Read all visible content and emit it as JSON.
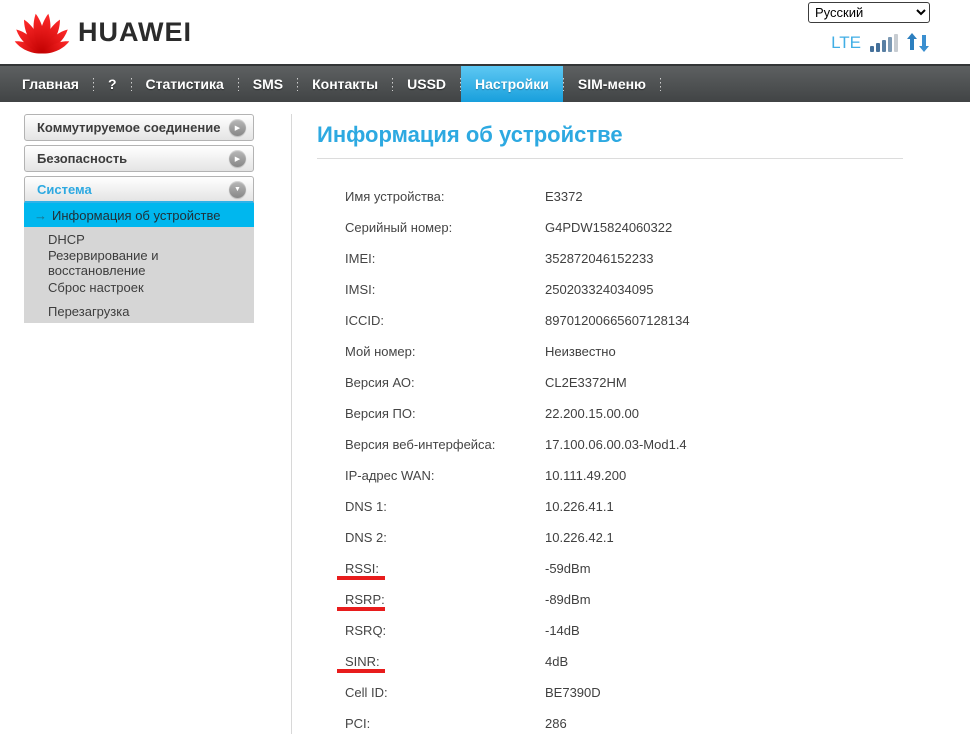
{
  "header": {
    "brand": "HUAWEI",
    "language": {
      "selected": "Русский",
      "options": [
        "Русский"
      ]
    },
    "network_type": "LTE"
  },
  "nav": {
    "items": [
      {
        "id": "home",
        "label": "Главная",
        "active": false
      },
      {
        "id": "help",
        "label": "?",
        "active": false
      },
      {
        "id": "statistics",
        "label": "Статистика",
        "active": false
      },
      {
        "id": "sms",
        "label": "SMS",
        "active": false
      },
      {
        "id": "contacts",
        "label": "Контакты",
        "active": false
      },
      {
        "id": "ussd",
        "label": "USSD",
        "active": false
      },
      {
        "id": "settings",
        "label": "Настройки",
        "active": true
      },
      {
        "id": "sim-menu",
        "label": "SIM-меню",
        "active": false
      }
    ]
  },
  "sidebar": {
    "sections": [
      {
        "id": "dialup",
        "label": "Коммутируемое соединение",
        "expanded": false,
        "items": []
      },
      {
        "id": "security",
        "label": "Безопасность",
        "expanded": false,
        "items": []
      },
      {
        "id": "system",
        "label": "Система",
        "expanded": true,
        "items": [
          {
            "id": "device-info",
            "label": "Информация об устройстве",
            "selected": true
          },
          {
            "id": "dhcp",
            "label": "DHCP",
            "selected": false
          },
          {
            "id": "backup-restore",
            "label": "Резервирование и восстановление",
            "selected": false
          },
          {
            "id": "reset",
            "label": "Сброс настроек",
            "selected": false
          },
          {
            "id": "reboot",
            "label": "Перезагрузка",
            "selected": false
          }
        ]
      }
    ]
  },
  "main": {
    "title": "Информация об устройстве",
    "rows": [
      {
        "id": "device-name",
        "label": "Имя устройства:",
        "value": "E3372",
        "underlined": false
      },
      {
        "id": "serial-number",
        "label": "Серийный номер:",
        "value": "G4PDW15824060322",
        "underlined": false
      },
      {
        "id": "imei",
        "label": "IMEI:",
        "value": "352872046152233",
        "underlined": false
      },
      {
        "id": "imsi",
        "label": "IMSI:",
        "value": "250203324034095",
        "underlined": false
      },
      {
        "id": "iccid",
        "label": "ICCID:",
        "value": "89701200665607128134",
        "underlined": false
      },
      {
        "id": "my-number",
        "label": "Мой номер:",
        "value": "Неизвестно",
        "underlined": false
      },
      {
        "id": "hw-version",
        "label": "Версия АО:",
        "value": "CL2E3372HM",
        "underlined": false
      },
      {
        "id": "sw-version",
        "label": "Версия ПО:",
        "value": "22.200.15.00.00",
        "underlined": false
      },
      {
        "id": "webui-version",
        "label": "Версия веб-интерфейса:",
        "value": "17.100.06.00.03-Mod1.4",
        "underlined": false
      },
      {
        "id": "wan-ip",
        "label": "IP-адрес WAN:",
        "value": "10.111.49.200",
        "underlined": false
      },
      {
        "id": "dns1",
        "label": "DNS 1:",
        "value": "10.226.41.1",
        "underlined": false
      },
      {
        "id": "dns2",
        "label": "DNS 2:",
        "value": "10.226.42.1",
        "underlined": false
      },
      {
        "id": "rssi",
        "label": "RSSI:",
        "value": "-59dBm",
        "underlined": true
      },
      {
        "id": "rsrp",
        "label": "RSRP:",
        "value": "-89dBm",
        "underlined": true
      },
      {
        "id": "rsrq",
        "label": "RSRQ:",
        "value": "-14dB",
        "underlined": false
      },
      {
        "id": "sinr",
        "label": "SINR:",
        "value": "4dB",
        "underlined": true
      },
      {
        "id": "cell-id",
        "label": "Cell ID:",
        "value": "BE7390D",
        "underlined": false
      },
      {
        "id": "pci",
        "label": "PCI:",
        "value": "286",
        "underlined": false
      }
    ]
  },
  "icons": {
    "collapsed_section_glyph": "▶",
    "expanded_section_glyph": "▼",
    "selected_item_arrow": "→"
  },
  "colors": {
    "accent_blue": "#2da9e1",
    "active_tab_top": "#5ec8f3",
    "active_tab_bottom": "#189fdc",
    "selected_item_bg": "#00b7ee",
    "navbar_bg": "#4b4e4f",
    "submenu_bg": "#d6d6d6",
    "underline_red": "#e81c1c",
    "brand_red": "#e60012",
    "lte_blue": "#41aee5"
  }
}
